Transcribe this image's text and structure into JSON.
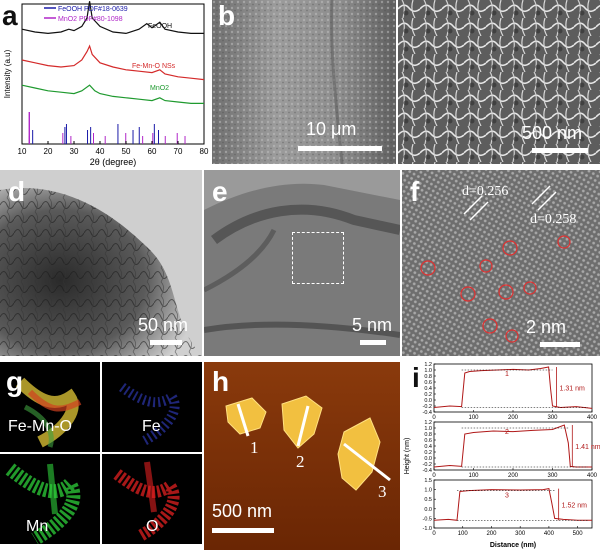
{
  "panels": {
    "a": {
      "letter": "a"
    },
    "b": {
      "letter": "b",
      "scale": "10 μm"
    },
    "b2": {
      "scale": "500 nm"
    },
    "d": {
      "letter": "d",
      "scale": "50 nm"
    },
    "e": {
      "letter": "e",
      "scale": "5 nm"
    },
    "f": {
      "letter": "f",
      "scale": "2 nm",
      "d1": "d=0.256",
      "d2": "d=0.258"
    },
    "g": {
      "letter": "g",
      "labels": [
        "Fe-Mn-O",
        "Fe",
        "Mn",
        "O"
      ]
    },
    "h": {
      "letter": "h",
      "scale": "500 nm",
      "labels": [
        "1",
        "2",
        "3"
      ]
    },
    "i": {
      "letter": "i"
    }
  },
  "colors": {
    "feooh_ref": "#1a1aa8",
    "mno2_ref": "#b026c8",
    "feooh_curve": "#111111",
    "femno_curve": "#d42a2a",
    "mno2_curve": "#1f9a2f",
    "profile_line": "#b01818",
    "eds_fe": "#3340c8",
    "eds_mn": "#2ecf3a",
    "eds_o": "#e02020"
  },
  "chart_data": [
    {
      "type": "line",
      "panel": "a",
      "xlabel": "2θ (degree)",
      "ylabel": "Intensity (a.u)",
      "xlim": [
        10,
        80
      ],
      "xticks": [
        10,
        20,
        30,
        40,
        50,
        60,
        70,
        80
      ],
      "legend": [
        "FeOOH PDF#18-0639",
        "MnO2 PDF#80-1098"
      ],
      "legend_placement": "top-left",
      "series": [
        {
          "name": "FeOOH",
          "x": [
            10,
            15,
            20,
            25,
            28,
            30,
            33,
            35,
            36,
            37,
            40,
            45,
            50,
            55,
            58,
            60,
            63,
            65,
            70,
            75,
            80
          ],
          "values": [
            0.82,
            0.8,
            0.79,
            0.8,
            0.82,
            0.81,
            0.84,
            0.9,
            1.02,
            0.9,
            0.84,
            0.8,
            0.79,
            0.82,
            0.86,
            0.83,
            0.87,
            0.82,
            0.8,
            0.79,
            0.79
          ]
        },
        {
          "name": "Fe-Mn-O NSs",
          "x": [
            10,
            15,
            20,
            25,
            30,
            33,
            35,
            36,
            37,
            40,
            45,
            50,
            55,
            60,
            63,
            65,
            70,
            75,
            80
          ],
          "values": [
            0.6,
            0.58,
            0.56,
            0.55,
            0.56,
            0.6,
            0.66,
            0.7,
            0.64,
            0.58,
            0.55,
            0.53,
            0.52,
            0.51,
            0.53,
            0.5,
            0.48,
            0.47,
            0.46
          ]
        },
        {
          "name": "MnO2",
          "x": [
            10,
            15,
            20,
            25,
            30,
            33,
            36,
            38,
            40,
            45,
            50,
            55,
            60,
            63,
            65,
            70,
            75,
            80
          ],
          "values": [
            0.42,
            0.4,
            0.38,
            0.37,
            0.36,
            0.38,
            0.42,
            0.38,
            0.36,
            0.34,
            0.33,
            0.32,
            0.31,
            0.33,
            0.31,
            0.3,
            0.29,
            0.29
          ]
        }
      ],
      "annotations": [
        "FeOOH",
        "Fe-Mn-O NSs",
        "MnO2"
      ],
      "reference_lines": {
        "feooh": [
          14.1,
          26.5,
          27.1,
          35.2,
          36.4,
          46.9,
          52.7,
          55.1,
          60.9,
          62.5
        ],
        "mno2": [
          12.8,
          25.7,
          28.8,
          37.5,
          42.0,
          49.9,
          56.4,
          60.3,
          65.1,
          69.7,
          72.7
        ]
      }
    },
    {
      "type": "line",
      "panel": "i",
      "xlabel": "Distance (nm)",
      "ylabel": "Height (nm)",
      "subplots": [
        {
          "xlim": [
            0,
            400
          ],
          "xticks": [
            0,
            100,
            200,
            300,
            400
          ],
          "ylim": [
            -0.4,
            1.2
          ],
          "yticks": [
            -0.4,
            -0.2,
            0.0,
            0.2,
            0.4,
            0.6,
            0.8,
            1.0,
            1.2
          ],
          "label": "1",
          "height_label": "1.31 nm",
          "x": [
            0,
            40,
            70,
            78,
            90,
            120,
            160,
            200,
            240,
            270,
            290,
            295,
            300,
            320,
            360,
            400
          ],
          "values": [
            -0.25,
            -0.2,
            -0.22,
            0.9,
            0.95,
            0.98,
            1.0,
            1.02,
            1.0,
            1.05,
            1.1,
            0.4,
            -0.2,
            -0.25,
            -0.22,
            -0.28
          ]
        },
        {
          "xlim": [
            0,
            400
          ],
          "xticks": [
            0,
            100,
            200,
            300,
            400
          ],
          "ylim": [
            -0.4,
            1.2
          ],
          "yticks": [
            -0.4,
            -0.2,
            0.0,
            0.2,
            0.4,
            0.6,
            0.8,
            1.0,
            1.2
          ],
          "label": "2",
          "height_label": "1.41 nm",
          "x": [
            0,
            40,
            70,
            78,
            100,
            150,
            200,
            250,
            300,
            330,
            340,
            345,
            360,
            400
          ],
          "values": [
            -0.3,
            -0.25,
            -0.28,
            0.8,
            0.85,
            0.9,
            0.88,
            0.92,
            0.95,
            1.1,
            0.5,
            -0.28,
            -0.3,
            -0.3
          ]
        },
        {
          "xlim": [
            0,
            550
          ],
          "xticks": [
            0,
            100,
            200,
            300,
            400,
            500
          ],
          "ylim": [
            -1.0,
            1.5
          ],
          "yticks": [
            -1.0,
            -0.5,
            0.0,
            0.5,
            1.0,
            1.5
          ],
          "label": "3",
          "height_label": "1.52 nm",
          "x": [
            0,
            50,
            80,
            90,
            120,
            200,
            300,
            380,
            400,
            410,
            420,
            450,
            500,
            550
          ],
          "values": [
            -0.6,
            -0.55,
            -0.6,
            0.9,
            0.95,
            1.0,
            0.98,
            1.0,
            1.05,
            0.3,
            -0.5,
            -0.55,
            -0.6,
            -0.6
          ]
        }
      ]
    }
  ]
}
